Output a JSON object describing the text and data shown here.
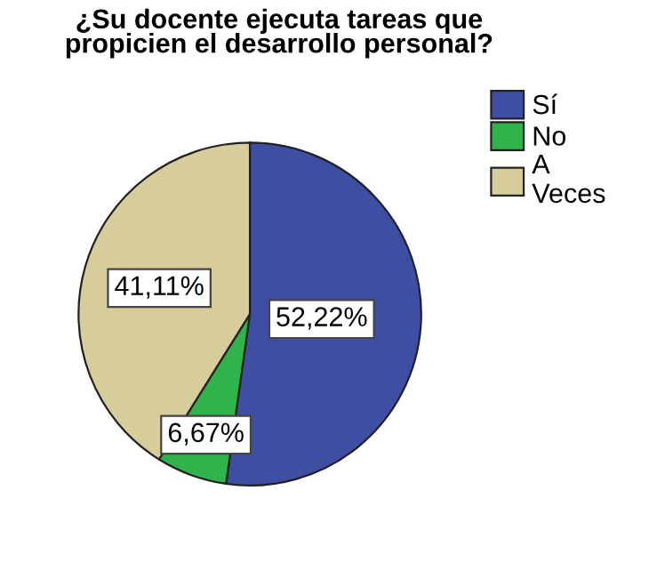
{
  "chart_data": {
    "type": "pie",
    "title": "¿Su docente ejecuta tareas que\npropicien el desarrollo personal?",
    "categories": [
      "Sí",
      "No",
      "A\nVeces"
    ],
    "values": [
      52.22,
      6.67,
      41.11
    ],
    "value_labels": [
      "52,22%",
      "6,67%",
      "41,11%"
    ],
    "colors": [
      "#3e4fa3",
      "#2fb34b",
      "#d7cd9b"
    ],
    "legend": "top right"
  }
}
